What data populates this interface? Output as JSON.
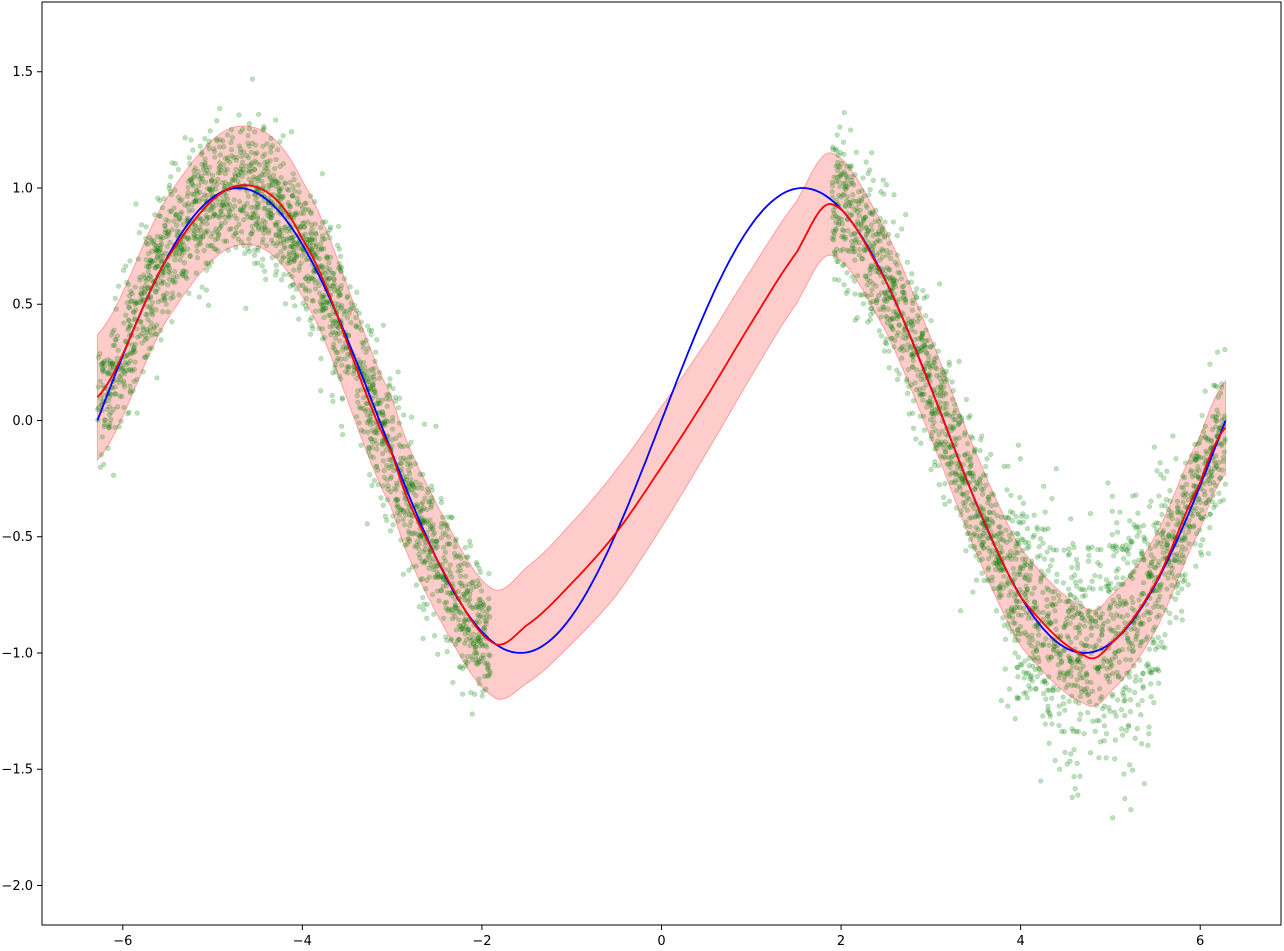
{
  "chart_data": {
    "type": "line",
    "title": "",
    "xlabel": "",
    "ylabel": "",
    "xlim": [
      -6.9,
      6.9
    ],
    "ylim": [
      -2.17,
      1.8
    ],
    "x_ticks": [
      -6,
      -4,
      -2,
      0,
      2,
      4,
      6
    ],
    "x_tick_labels": [
      "−6",
      "−4",
      "−2",
      "0",
      "2",
      "4",
      "6"
    ],
    "y_ticks": [
      1.5,
      1.0,
      0.5,
      0.0,
      -0.5,
      -1.0,
      -1.5,
      -2.0
    ],
    "y_tick_labels": [
      "1.5",
      "1.0",
      "0.5",
      "0.0",
      "−0.5",
      "−1.0",
      "−1.5",
      "−2.0"
    ],
    "grid": false,
    "legend": "none",
    "x_range": [
      -6.283,
      6.283
    ],
    "observation_gap": [
      -1.9,
      1.9
    ],
    "series": [
      {
        "kind": "scatter",
        "color": "#008000",
        "opacity": 0.25,
        "function": "sin(x) + noise",
        "noise_std": 0.15,
        "noise_std_near_x_4.7": 0.25,
        "count": 4200,
        "segments": [
          [
            -6.283,
            -1.9
          ],
          [
            1.9,
            6.283
          ]
        ]
      },
      {
        "kind": "line",
        "color": "#0000ff",
        "function": "sin(x)",
        "points": [
          [
            -6.283,
            0.0
          ],
          [
            -4.712,
            1.0
          ],
          [
            -1.571,
            -1.0
          ],
          [
            1.571,
            1.0
          ],
          [
            4.712,
            -1.0
          ],
          [
            6.283,
            0.0
          ]
        ]
      },
      {
        "kind": "line",
        "color": "#ff0000",
        "points": [
          [
            -6.283,
            0.1
          ],
          [
            -5.5,
            0.7
          ],
          [
            -4.712,
            1.01
          ],
          [
            -4.0,
            0.78
          ],
          [
            -3.0,
            -0.14
          ],
          [
            -2.5,
            -0.6
          ],
          [
            -1.9,
            -0.95
          ],
          [
            -1.5,
            -0.88
          ],
          [
            -1.0,
            -0.7
          ],
          [
            -0.5,
            -0.48
          ],
          [
            0.0,
            -0.2
          ],
          [
            0.5,
            0.1
          ],
          [
            1.0,
            0.42
          ],
          [
            1.5,
            0.72
          ],
          [
            1.9,
            0.93
          ],
          [
            2.5,
            0.6
          ],
          [
            3.0,
            0.14
          ],
          [
            3.5,
            -0.35
          ],
          [
            4.0,
            -0.76
          ],
          [
            4.712,
            -1.01
          ],
          [
            5.0,
            -0.96
          ],
          [
            5.5,
            -0.7
          ],
          [
            6.0,
            -0.27
          ],
          [
            6.283,
            -0.03
          ]
        ]
      },
      {
        "kind": "band",
        "color": "#ff0000",
        "opacity": 0.2,
        "center": "red line",
        "half_width": [
          [
            -6.283,
            0.27
          ],
          [
            -1.9,
            0.23
          ],
          [
            -1.5,
            0.25
          ],
          [
            -0.5,
            0.27
          ],
          [
            0.0,
            0.26
          ],
          [
            0.5,
            0.24
          ],
          [
            1.5,
            0.22
          ],
          [
            1.9,
            0.22
          ],
          [
            6.283,
            0.2
          ]
        ]
      }
    ]
  }
}
